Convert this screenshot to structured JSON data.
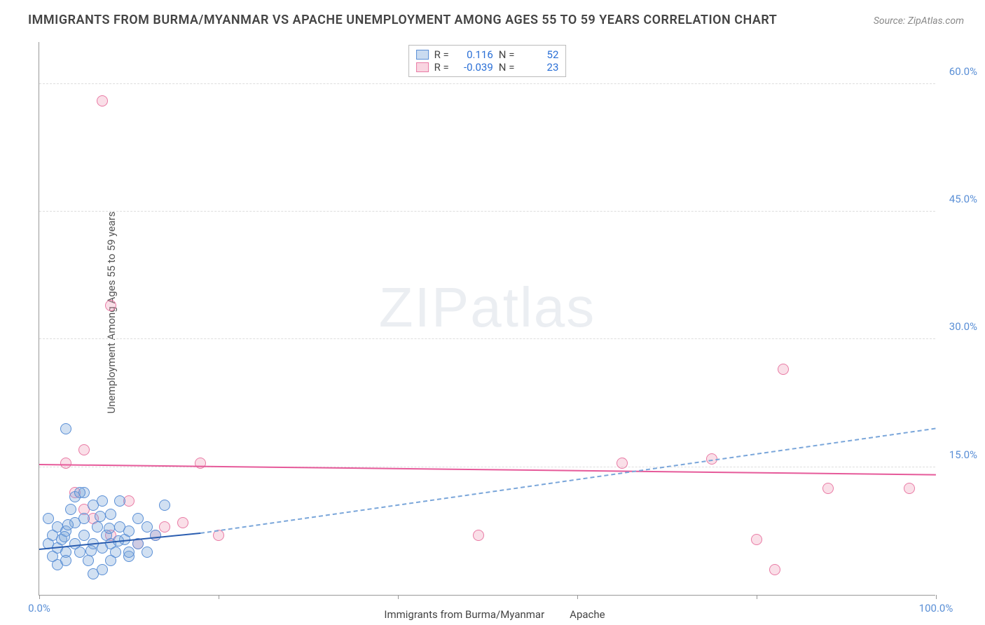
{
  "title": "IMMIGRANTS FROM BURMA/MYANMAR VS APACHE UNEMPLOYMENT AMONG AGES 55 TO 59 YEARS CORRELATION CHART",
  "source": "Source: ZipAtlas.com",
  "ylabel": "Unemployment Among Ages 55 to 59 years",
  "watermark_a": "ZIP",
  "watermark_b": "atlas",
  "chart": {
    "type": "scatter",
    "xlim": [
      0,
      100
    ],
    "ylim": [
      0,
      65
    ],
    "xtick_positions": [
      0,
      20,
      40,
      60,
      80,
      100
    ],
    "xtick_labels": {
      "0": "0.0%",
      "100": "100.0%"
    },
    "ytick_positions": [
      15,
      30,
      45,
      60
    ],
    "ytick_labels": {
      "15": "15.0%",
      "30": "30.0%",
      "45": "45.0%",
      "60": "60.0%"
    },
    "marker_radius": 8,
    "background_color": "#ffffff",
    "grid_color": "#dddddd",
    "axis_color": "#999999"
  },
  "series": {
    "blue": {
      "label": "Immigrants from Burma/Myanmar",
      "color_fill": "rgba(122,166,218,0.35)",
      "color_stroke": "#5a8fd6",
      "R": "0.116",
      "N": "52",
      "trend_solid": {
        "x1": 0,
        "y1": 5.3,
        "x2": 18,
        "y2": 7.2
      },
      "trend_dash": {
        "x1": 18,
        "y1": 7.2,
        "x2": 100,
        "y2": 19.5
      },
      "points": [
        [
          1,
          6
        ],
        [
          1.5,
          7
        ],
        [
          2,
          5.5
        ],
        [
          2,
          8
        ],
        [
          2.5,
          6.5
        ],
        [
          3,
          5
        ],
        [
          3,
          7.5
        ],
        [
          3.5,
          10
        ],
        [
          4,
          6
        ],
        [
          4,
          8.5
        ],
        [
          4.5,
          5
        ],
        [
          5,
          7
        ],
        [
          5,
          9
        ],
        [
          5.5,
          4
        ],
        [
          6,
          10.5
        ],
        [
          6,
          6
        ],
        [
          6.5,
          8
        ],
        [
          7,
          5.5
        ],
        [
          7,
          11
        ],
        [
          7.5,
          7
        ],
        [
          8,
          6
        ],
        [
          8,
          9.5
        ],
        [
          8.5,
          5
        ],
        [
          9,
          8
        ],
        [
          9.5,
          6.5
        ],
        [
          10,
          7.5
        ],
        [
          10,
          4.5
        ],
        [
          11,
          9
        ],
        [
          11,
          6
        ],
        [
          12,
          5
        ],
        [
          12,
          8
        ],
        [
          13,
          7
        ],
        [
          3,
          19.5
        ],
        [
          4,
          11.5
        ],
        [
          14,
          10.5
        ],
        [
          6,
          2.5
        ],
        [
          7,
          3
        ],
        [
          5,
          12
        ],
        [
          2,
          3.5
        ],
        [
          3,
          4
        ],
        [
          4.5,
          12
        ],
        [
          8,
          4
        ],
        [
          9,
          11
        ],
        [
          10,
          5
        ],
        [
          1,
          9
        ],
        [
          1.5,
          4.5
        ],
        [
          2.8,
          6.8
        ],
        [
          3.2,
          8.2
        ],
        [
          5.8,
          5.2
        ],
        [
          6.8,
          9.2
        ],
        [
          7.8,
          7.8
        ],
        [
          8.8,
          6.3
        ]
      ]
    },
    "pink": {
      "label": "Apache",
      "color_fill": "rgba(240,150,180,0.3)",
      "color_stroke": "#e97ba5",
      "R": "-0.039",
      "N": "23",
      "trend_solid": {
        "x1": 0,
        "y1": 15.2,
        "x2": 100,
        "y2": 14.0
      },
      "points": [
        [
          7,
          58
        ],
        [
          8,
          34
        ],
        [
          3,
          15.5
        ],
        [
          5,
          17
        ],
        [
          4,
          12
        ],
        [
          5,
          10
        ],
        [
          6,
          9
        ],
        [
          8,
          7
        ],
        [
          10,
          11
        ],
        [
          11,
          6
        ],
        [
          13,
          7
        ],
        [
          14,
          8
        ],
        [
          18,
          15.5
        ],
        [
          16,
          8.5
        ],
        [
          20,
          7
        ],
        [
          49,
          7
        ],
        [
          65,
          15.5
        ],
        [
          80,
          6.5
        ],
        [
          83,
          26.5
        ],
        [
          88,
          12.5
        ],
        [
          97,
          12.5
        ],
        [
          82,
          3
        ],
        [
          75,
          16
        ]
      ]
    }
  },
  "legend_top": {
    "rows": [
      {
        "swatch": "blue",
        "R_lbl": "R =",
        "R": "0.116",
        "N_lbl": "N =",
        "N": "52"
      },
      {
        "swatch": "pink",
        "R_lbl": "R =",
        "R": "-0.039",
        "N_lbl": "N =",
        "N": "23"
      }
    ]
  },
  "legend_bottom": {
    "items": [
      {
        "swatch": "blue",
        "label": "Immigrants from Burma/Myanmar"
      },
      {
        "swatch": "pink",
        "label": "Apache"
      }
    ]
  }
}
